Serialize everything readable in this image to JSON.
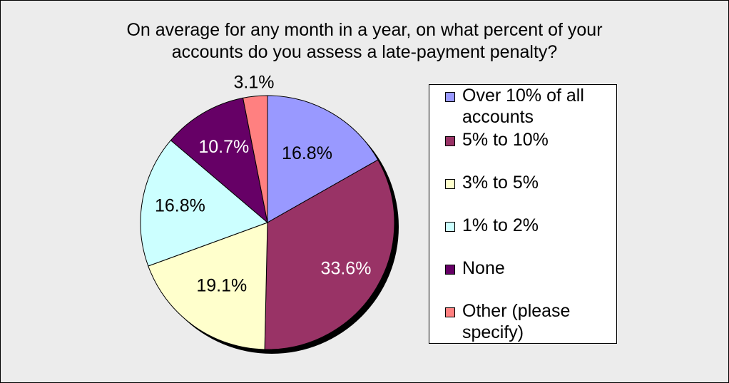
{
  "chart_data": {
    "type": "pie",
    "title": "On average for any month in a year, on what percent of your accounts do you assess a late-payment penalty?",
    "title_lines": [
      "On average for any month in a year, on what percent of your",
      "accounts do you assess a late-payment penalty?"
    ],
    "slices": [
      {
        "name": "Over 10% of all accounts",
        "value": 16.8,
        "label": "16.8%",
        "color": "#9999ff",
        "label_color": "#000000"
      },
      {
        "name": "5% to 10%",
        "value": 33.6,
        "label": "33.6%",
        "color": "#993366",
        "label_color": "#ffffff"
      },
      {
        "name": "3% to 5%",
        "value": 19.1,
        "label": "19.1%",
        "color": "#ffffcc",
        "label_color": "#000000"
      },
      {
        "name": "1% to 2%",
        "value": 16.8,
        "label": "16.8%",
        "color": "#ccffff",
        "label_color": "#000000"
      },
      {
        "name": "None",
        "value": 10.7,
        "label": "10.7%",
        "color": "#660066",
        "label_color": "#ffffff"
      },
      {
        "name": "Other (please specify)",
        "value": 3.1,
        "label": "3.1%",
        "color": "#ff8080",
        "label_color": "#000000"
      }
    ],
    "legend": {
      "position": "right",
      "entries": [
        [
          "Over 10% of all",
          "accounts"
        ],
        [
          "5% to 10%"
        ],
        [
          "3% to 5%"
        ],
        [
          "1% to 2%"
        ],
        [
          "None"
        ],
        [
          "Other (please",
          "specify)"
        ]
      ]
    },
    "start_angle": "12 o'clock",
    "direction": "clockwise",
    "shadow": true
  },
  "colors": {
    "background": "#ececec",
    "border": "#000000",
    "shadow": "#000000"
  }
}
